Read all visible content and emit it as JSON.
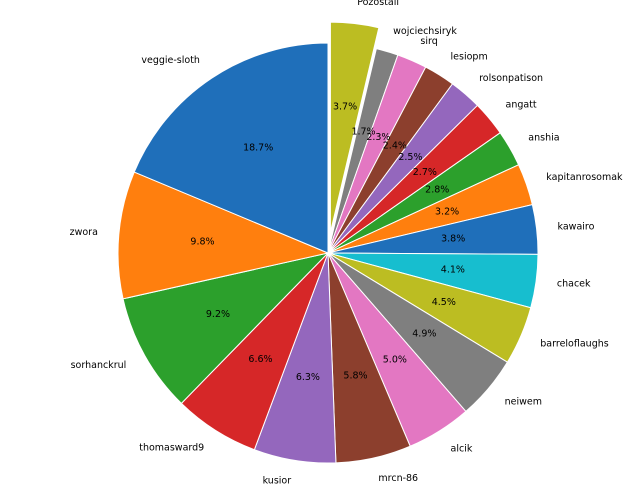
{
  "chart_data": {
    "type": "pie",
    "title": "",
    "start_angle_deg": 90,
    "direction": "clockwise",
    "exploded": [
      "Pozostali"
    ],
    "slices": [
      {
        "label": "Pozostali",
        "value": 3.7,
        "pct_label": "3.7%",
        "color": "#bcbd22"
      },
      {
        "label": "wojciechsiryk",
        "value": 1.7,
        "pct_label": "1.7%",
        "color": "#7f7f7f"
      },
      {
        "label": "sirq",
        "value": 2.3,
        "pct_label": "2.3%",
        "color": "#e377c2"
      },
      {
        "label": "lesiopm",
        "value": 2.4,
        "pct_label": "2.4%",
        "color": "#8c3f2d"
      },
      {
        "label": "rolsonpatison",
        "value": 2.5,
        "pct_label": "2.5%",
        "color": "#9467bd"
      },
      {
        "label": "angatt",
        "value": 2.7,
        "pct_label": "2.7%",
        "color": "#d62728"
      },
      {
        "label": "anshia",
        "value": 2.8,
        "pct_label": "2.8%",
        "color": "#2ca02c"
      },
      {
        "label": "kapitanrosomak",
        "value": 3.2,
        "pct_label": "3.2%",
        "color": "#ff7f0e"
      },
      {
        "label": "kawairo",
        "value": 3.8,
        "pct_label": "3.8%",
        "color": "#1f6fba"
      },
      {
        "label": "chacek",
        "value": 4.1,
        "pct_label": "4.1%",
        "color": "#17becf"
      },
      {
        "label": "barreloflaughs",
        "value": 4.5,
        "pct_label": "4.5%",
        "color": "#bcbd22"
      },
      {
        "label": "neiwem",
        "value": 4.9,
        "pct_label": "4.9%",
        "color": "#7f7f7f"
      },
      {
        "label": "alcik",
        "value": 5.0,
        "pct_label": "5.0%",
        "color": "#e377c2"
      },
      {
        "label": "mrcn-86",
        "value": 5.8,
        "pct_label": "5.8%",
        "color": "#8c3f2d"
      },
      {
        "label": "kusior",
        "value": 6.3,
        "pct_label": "6.3%",
        "color": "#9467bd"
      },
      {
        "label": "thomasward9",
        "value": 6.6,
        "pct_label": "6.6%",
        "color": "#d62728"
      },
      {
        "label": "sorhanckrul",
        "value": 9.2,
        "pct_label": "9.2%",
        "color": "#2ca02c"
      },
      {
        "label": "zwora",
        "value": 9.8,
        "pct_label": "9.8%",
        "color": "#ff7f0e"
      },
      {
        "label": "veggie-sloth",
        "value": 18.7,
        "pct_label": "18.7%",
        "color": "#1f6fba"
      }
    ]
  }
}
